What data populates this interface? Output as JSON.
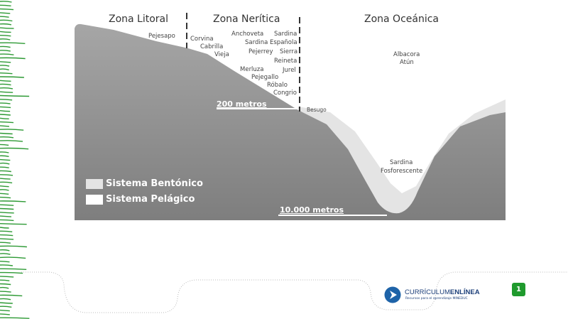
{
  "diagram": {
    "zones": [
      "Zona Litoral",
      "Zona Nerítica",
      "Zona Oceánica"
    ],
    "species": {
      "litoral": [
        "Pejesapo"
      ],
      "neritica_left": [
        "Corvina",
        "Cabrilla",
        "Vieja"
      ],
      "neritica_right": [
        "Anchoveta",
        "Sardina",
        "Sardina Española",
        "Pejerrey",
        "Sierra",
        "Reineta",
        "Merluza",
        "Jurel",
        "Pejegallo",
        "Róbalo",
        "Congrio"
      ],
      "oceanica": [
        "Albacora",
        "Atún"
      ],
      "besugo": "Besugo",
      "deep": [
        "Sardina",
        "Fosforescente"
      ]
    },
    "depths": [
      "200 metros",
      "10.000 metros"
    ],
    "legend": [
      {
        "label": "Sistema Bentónico",
        "color": "#e4e4e4"
      },
      {
        "label": "Sistema Pelágico",
        "color": "#ffffff"
      }
    ],
    "colors": {
      "ground": "#9a9a9a",
      "decoration": "#2e9a35"
    }
  },
  "footer": {
    "logo_main": "CURRÍCULUM",
    "logo_bold": "ENLÍNEA",
    "logo_sub": "Recursos para el aprendizaje MINEDUC",
    "page_number": "1"
  }
}
